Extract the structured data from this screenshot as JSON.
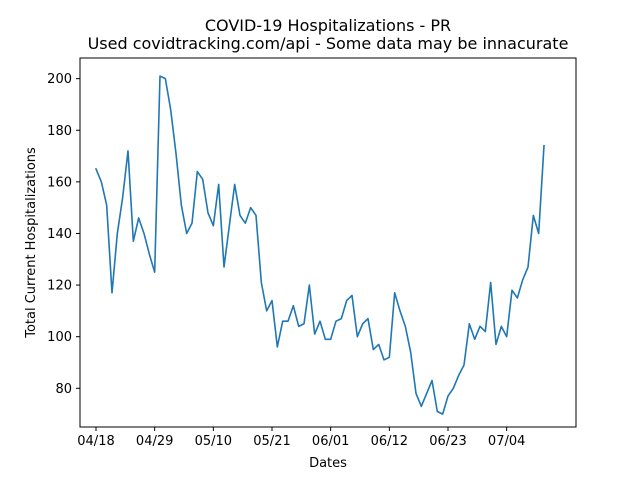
{
  "chart_data": {
    "type": "line",
    "title": "COVID-19 Hospitalizations - PR",
    "subtitle": "Used covidtracking.com/api - Some data may be innacurate",
    "xlabel": "Dates",
    "ylabel": "Total Current Hospitalizations",
    "xlim": [
      "2020-04-15",
      "2020-07-17"
    ],
    "ylim": [
      65,
      208
    ],
    "x_ticks": [
      {
        "date": "2020-04-18",
        "label": "04/18"
      },
      {
        "date": "2020-04-29",
        "label": "04/29"
      },
      {
        "date": "2020-05-10",
        "label": "05/10"
      },
      {
        "date": "2020-05-21",
        "label": "05/21"
      },
      {
        "date": "2020-06-01",
        "label": "06/01"
      },
      {
        "date": "2020-06-12",
        "label": "06/12"
      },
      {
        "date": "2020-06-23",
        "label": "06/23"
      },
      {
        "date": "2020-07-04",
        "label": "07/04"
      }
    ],
    "y_ticks": [
      80,
      100,
      120,
      140,
      160,
      180,
      200
    ],
    "grid": false,
    "series": [
      {
        "color": "#1f77b4",
        "start_date": "2020-04-18",
        "values": [
          165,
          160,
          151,
          117,
          140,
          154,
          172,
          137,
          146,
          140,
          132,
          125,
          201,
          200,
          188,
          171,
          151,
          140,
          144,
          164,
          161,
          148,
          143,
          159,
          127,
          143,
          159,
          147,
          144,
          150,
          147,
          121,
          110,
          114,
          96,
          106,
          106,
          112,
          104,
          105,
          120,
          101,
          106,
          99,
          99,
          106,
          107,
          114,
          116,
          100,
          105,
          107,
          95,
          97,
          91,
          92,
          117,
          110,
          104,
          94,
          78,
          73,
          78,
          83,
          71,
          70,
          77,
          80,
          85,
          89,
          105,
          99,
          104,
          102,
          121,
          97,
          104,
          100,
          118,
          115,
          122,
          127,
          147,
          140,
          174
        ]
      }
    ]
  }
}
